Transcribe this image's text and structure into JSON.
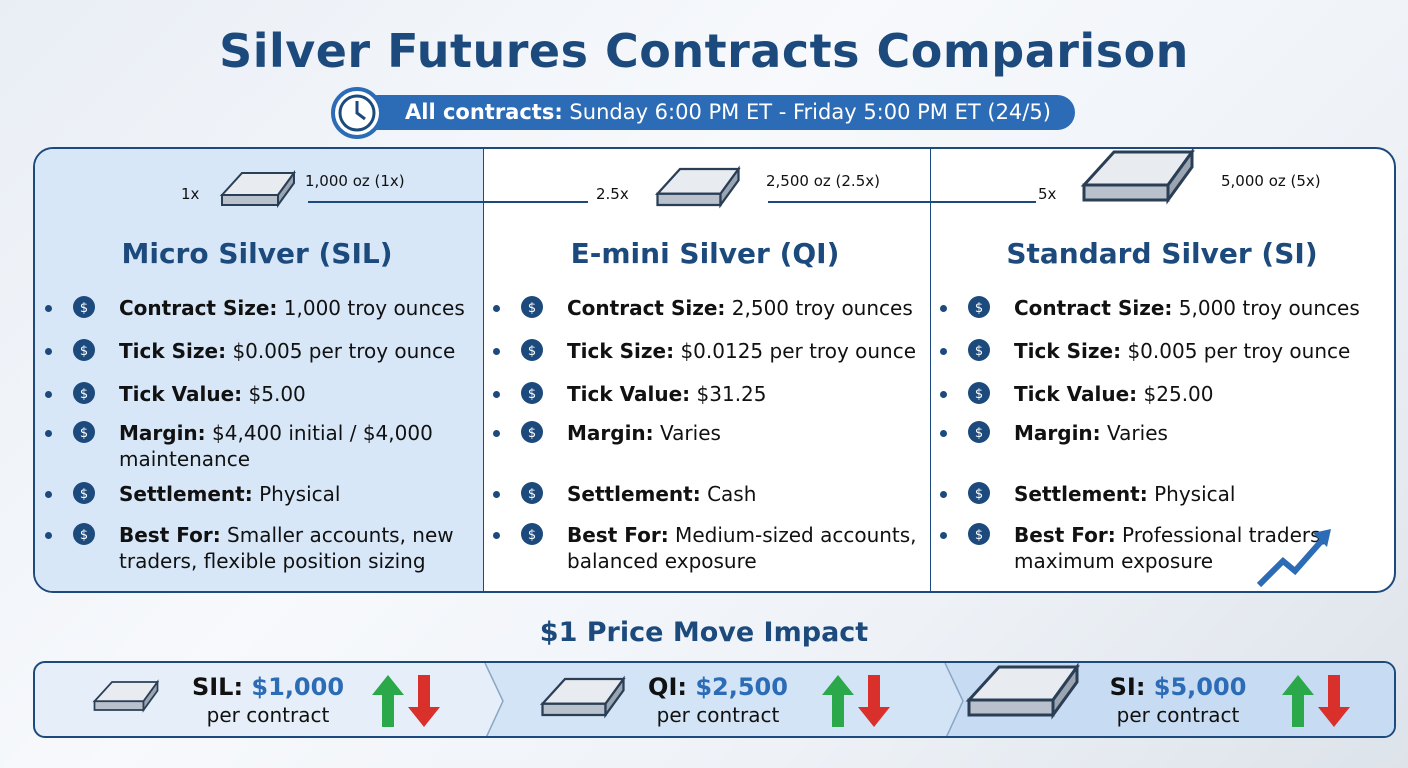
{
  "title": "Silver Futures Contracts Comparison",
  "hours": {
    "label": "All contracts:",
    "value": " Sunday 6:00 PM ET - Friday 5:00 PM ET (24/5)"
  },
  "contracts": [
    {
      "multiplier": "1x",
      "size_label": "1,000 oz (1x)",
      "name": "Micro Silver (SIL)",
      "rows": [
        {
          "icon": "weight-icon",
          "label": "Contract Size:",
          "value": " 1,000 troy ounces"
        },
        {
          "icon": "magnifier-dollar-icon",
          "label": "Tick Size:",
          "value": " $0.005 per troy ounce"
        },
        {
          "icon": "dollar-arrow-icon",
          "label": "Tick Value:",
          "value": " $5.00"
        },
        {
          "icon": "bank-lock-icon",
          "label": "Margin:",
          "value": " $4,400 initial / $4,000 maintenance"
        },
        {
          "icon": "truck-icon",
          "label": "Settlement:",
          "value": " Physical"
        },
        {
          "icon": "person-icon",
          "label": "Best For:",
          "value": " Smaller accounts, new traders, flexible position sizing"
        }
      ]
    },
    {
      "multiplier": "2.5x",
      "size_label": "2,500 oz (2.5x)",
      "name": "E-mini Silver (QI)",
      "rows": [
        {
          "icon": "weight-icon",
          "label": "Contract Size:",
          "value": " 2,500 troy ounces"
        },
        {
          "icon": "magnifier-dollar-icon",
          "label": "Tick Size:",
          "value": " $0.0125 per troy ounce"
        },
        {
          "icon": "dollar-arrow-icon",
          "label": "Tick Value:",
          "value": " $31.25"
        },
        {
          "icon": "question-dollar-icon",
          "label": "Margin:",
          "value": " Varies"
        },
        {
          "icon": "cash-icon",
          "label": "Settlement:",
          "value": " Cash"
        },
        {
          "icon": "handshake-icon",
          "label": "Best For:",
          "value": " Medium-sized accounts, balanced exposure"
        }
      ]
    },
    {
      "multiplier": "5x",
      "size_label": "5,000 oz (5x)",
      "name": "Standard Silver (SI)",
      "rows": [
        {
          "icon": "weight-icon",
          "label": "Contract Size:",
          "value": " 5,000 troy ounces"
        },
        {
          "icon": "magnifier-dollar-icon",
          "label": "Tick Size:",
          "value": " $0.005 per troy ounce"
        },
        {
          "icon": "dollar-arrow-icon",
          "label": "Tick Value:",
          "value": " $25.00"
        },
        {
          "icon": "question-dollar-icon",
          "label": "Margin:",
          "value": " Varies"
        },
        {
          "icon": "truck-icon",
          "label": "Settlement:",
          "value": " Physical"
        },
        {
          "icon": "group-icon",
          "label": "Best For:",
          "value": " Professional traders, maximum exposure"
        }
      ]
    }
  ],
  "impact": {
    "title": "$1 Price Move Impact",
    "items": [
      {
        "code": "SIL:",
        "amount": " $1,000",
        "unit": "per contract"
      },
      {
        "code": "QI:",
        "amount": " $2,500",
        "unit": "per contract"
      },
      {
        "code": "SI:",
        "amount": " $5,000",
        "unit": "per contract"
      }
    ]
  },
  "colors": {
    "navy": "#1c4a7c",
    "accent": "#2c6cb6",
    "up": "#2aa84a",
    "down": "#d9302c",
    "highlight": "#d7e7f8"
  }
}
